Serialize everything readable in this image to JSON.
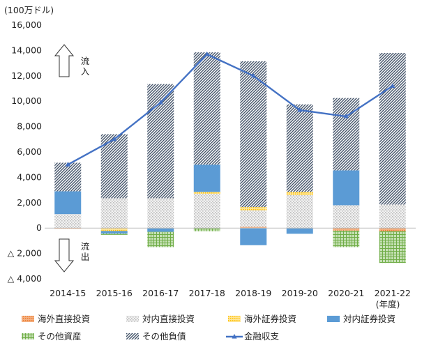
{
  "chart_data": {
    "type": "bar",
    "stacked": true,
    "unit_label": "(100万ドル)",
    "categories": [
      "2014-15",
      "2015-16",
      "2016-17",
      "2017-18",
      "2018-19",
      "2019-20",
      "2020-21",
      "2021-22"
    ],
    "x_unit_label": "(年度)",
    "ylim": [
      -4000,
      16000
    ],
    "yticks": [
      {
        "value": 16000,
        "label": "16,000"
      },
      {
        "value": 14000,
        "label": "14,000"
      },
      {
        "value": 12000,
        "label": "12,000"
      },
      {
        "value": 10000,
        "label": "10,000"
      },
      {
        "value": 8000,
        "label": "8,000"
      },
      {
        "value": 6000,
        "label": "6,000"
      },
      {
        "value": 4000,
        "label": "4,000"
      },
      {
        "value": 2000,
        "label": "2,000"
      },
      {
        "value": 0,
        "label": "0"
      },
      {
        "value": -2000,
        "label": "△ 2,000"
      },
      {
        "value": -4000,
        "label": "△ 4,000"
      }
    ],
    "inflow_label": "流入",
    "outflow_label": "流出",
    "series": [
      {
        "name": "海外直接投資",
        "color": "#ED7D31",
        "pattern": "dots-orange",
        "values": [
          -50,
          -30,
          0,
          0,
          100,
          0,
          -200,
          -250
        ]
      },
      {
        "name": "対内直接投資",
        "color": "#C0C0C0",
        "pattern": "dots-gray",
        "values": [
          1100,
          2350,
          2350,
          2700,
          1300,
          2600,
          1800,
          1850
        ]
      },
      {
        "name": "海外証券投資",
        "color": "#FFC000",
        "pattern": "dots-yellow",
        "values": [
          0,
          -200,
          0,
          150,
          250,
          250,
          0,
          0
        ]
      },
      {
        "name": "対内証券投資",
        "color": "#5B9BD5",
        "pattern": "solid-blue",
        "values": [
          1800,
          -200,
          -300,
          2150,
          -1350,
          -450,
          2750,
          0
        ]
      },
      {
        "name": "その他資産",
        "color": "#70AD47",
        "pattern": "grid-green",
        "values": [
          0,
          -100,
          -1200,
          -250,
          0,
          0,
          -1300,
          -2500
        ]
      },
      {
        "name": "その他負債",
        "color": "#44546A",
        "pattern": "diag-navy",
        "values": [
          2250,
          5050,
          9000,
          8850,
          11500,
          6900,
          5700,
          11950
        ]
      },
      {
        "name": "金融収支",
        "type": "line",
        "color": "#4472C4",
        "values": [
          5000,
          7000,
          9900,
          13700,
          12000,
          9300,
          8800,
          11200
        ]
      }
    ]
  }
}
